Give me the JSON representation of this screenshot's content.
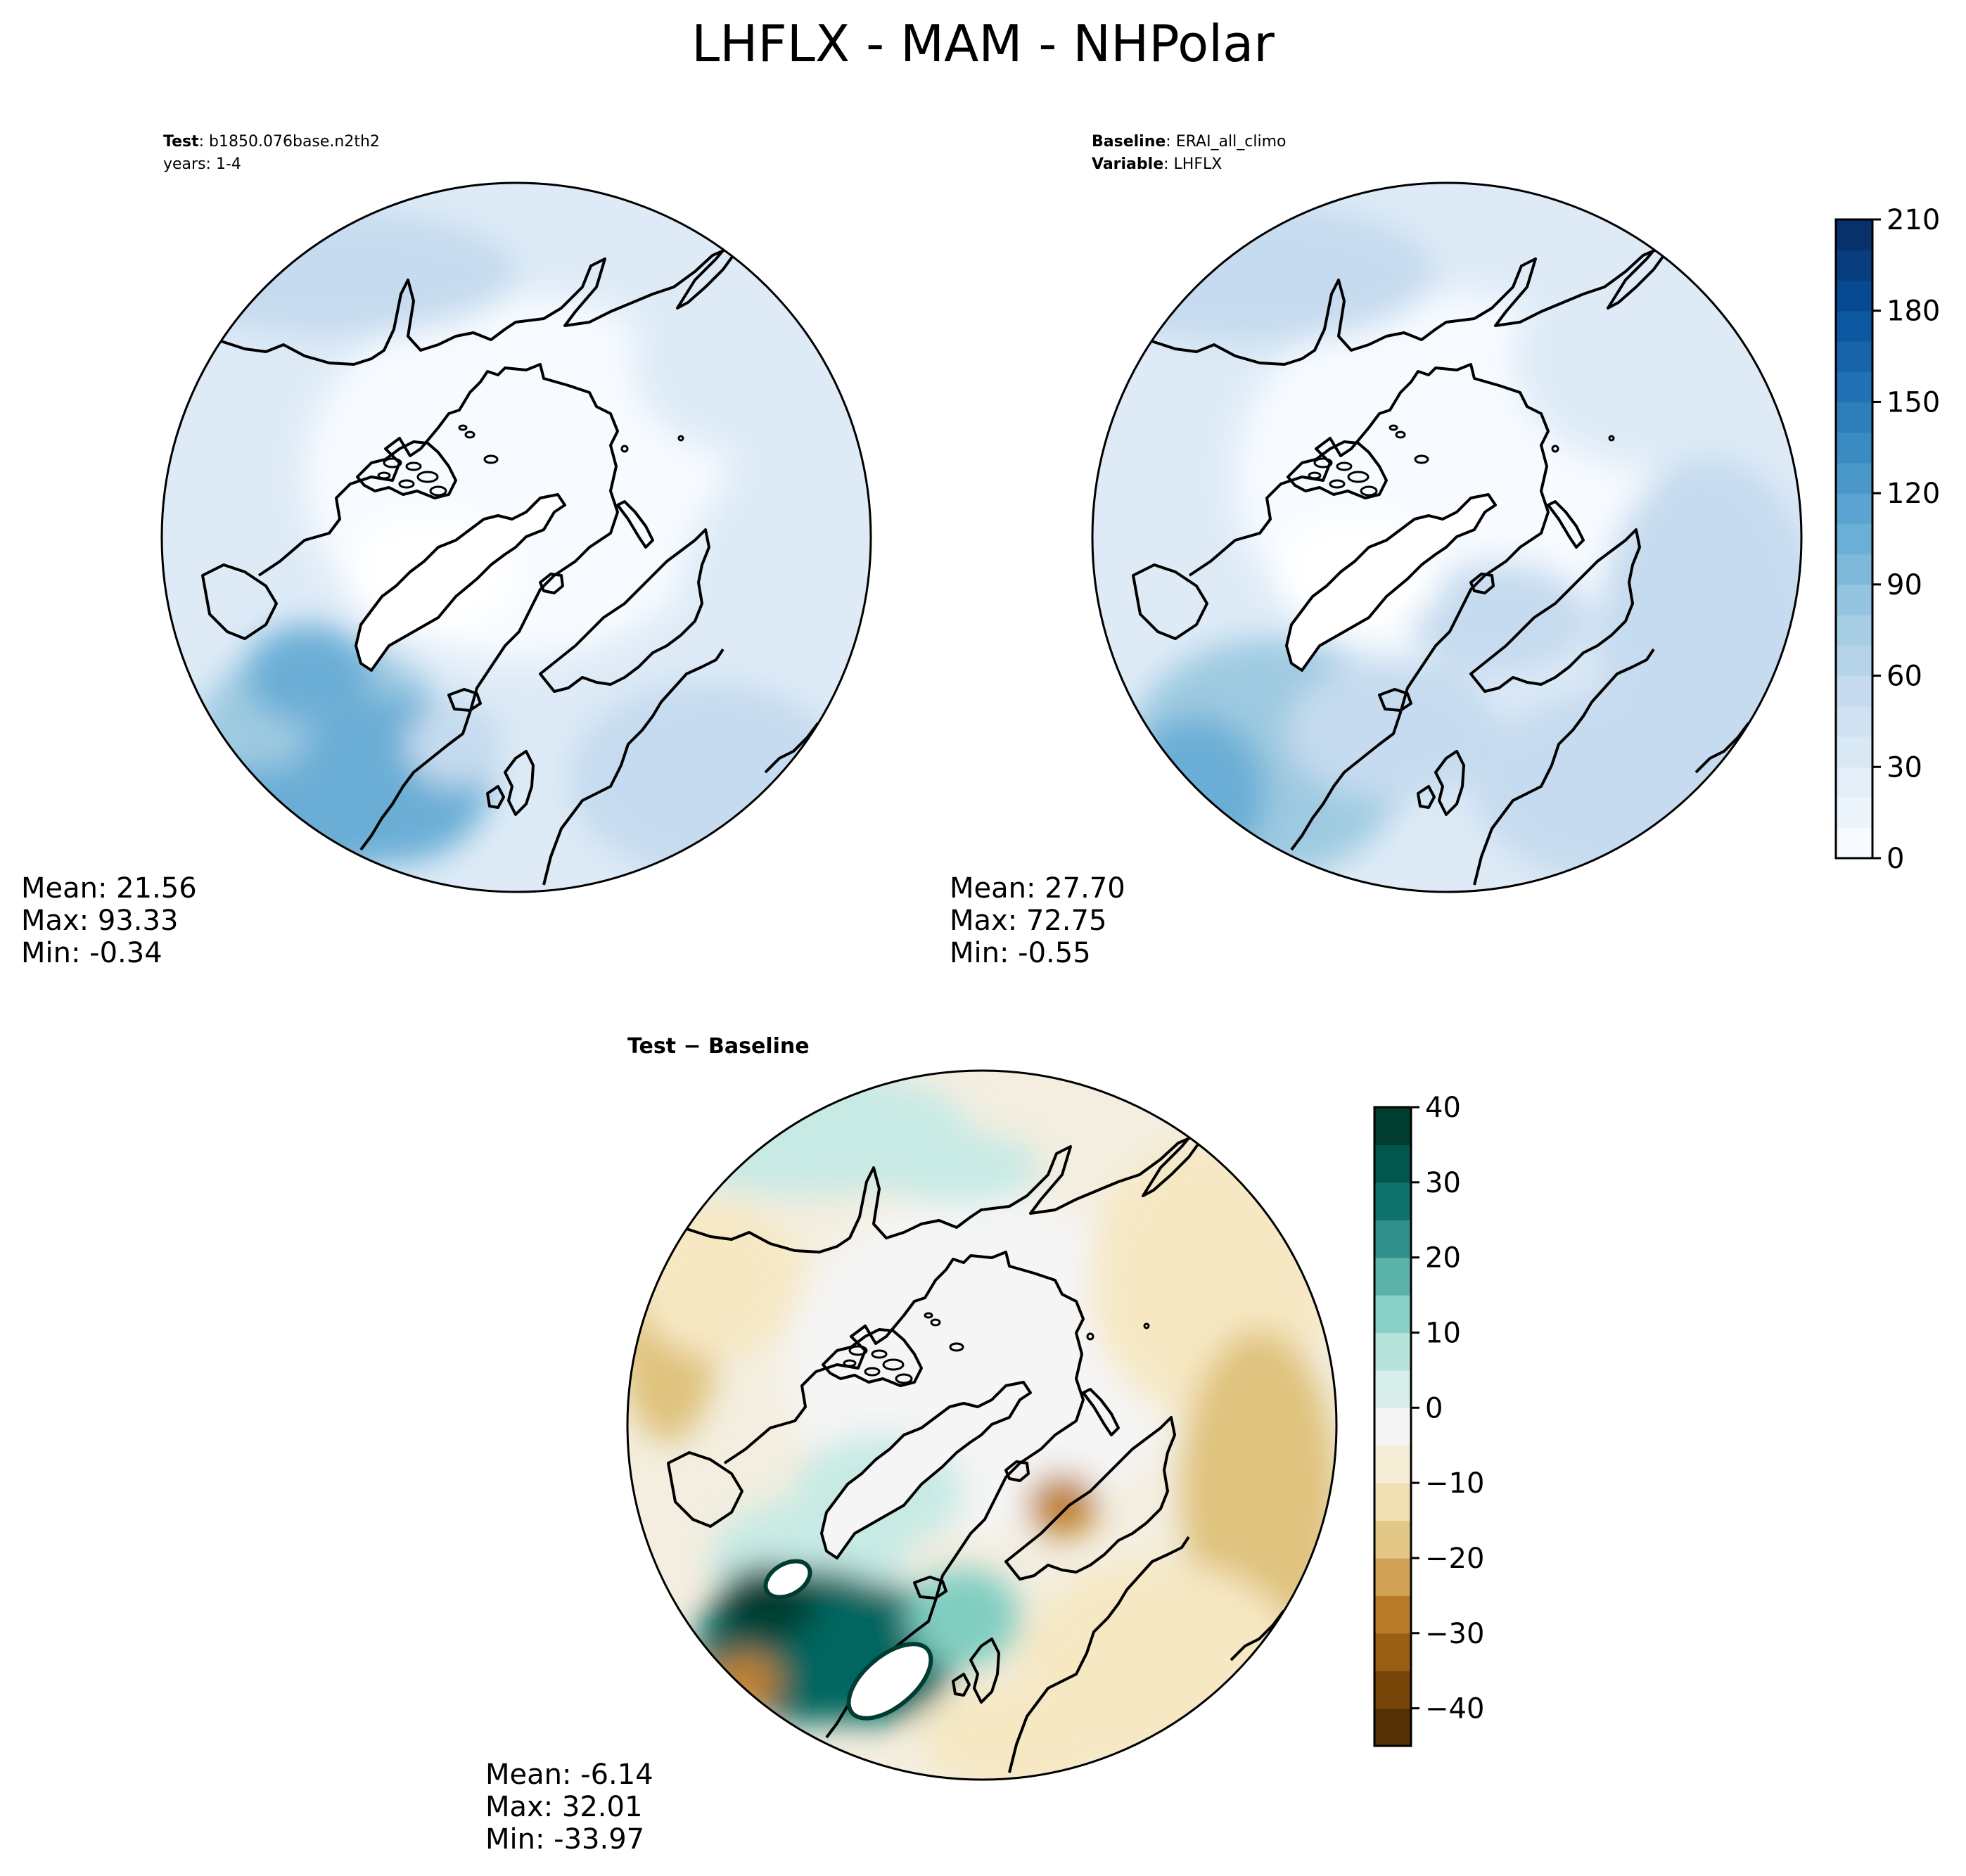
{
  "figure": {
    "title": "LHFLX - MAM - NHPolar"
  },
  "colors": {
    "sequential_ramp": [
      "#f7fbff",
      "#deebf7",
      "#c6dbef",
      "#9ecae1",
      "#6baed6",
      "#4292c6",
      "#2171b5",
      "#08519c",
      "#08306b"
    ],
    "diverging_brown": [
      "#543005",
      "#8c510a",
      "#bf812d",
      "#dfc27d",
      "#f6e8c3"
    ],
    "diverging_mid": "#f5f5f5",
    "diverging_green": [
      "#c7eae5",
      "#80cdc1",
      "#35978f",
      "#01665e",
      "#003c30"
    ],
    "coastline": "#000000"
  },
  "panels": {
    "test": {
      "header_key": "Test",
      "header_sep": ":",
      "header_value": "b1850.076base.n2th2",
      "years": "years: 1-4",
      "mean": "Mean: 21.56",
      "max": "Max: 93.33",
      "min": "Min: -0.34"
    },
    "baseline": {
      "header_key": "Baseline",
      "header_sep": ":",
      "header_value": "ERAI_all_climo",
      "variable_key": "Variable",
      "variable_value": "LHFLX",
      "mean": "Mean: 27.70",
      "max": "Max: 72.75",
      "min": "Min: -0.55"
    },
    "diff": {
      "label": "Test − Baseline",
      "mean": "Mean: -6.14",
      "max": "Max: 32.01",
      "min": "Min: -33.97"
    }
  },
  "chart_data": [
    {
      "type": "heatmap",
      "name": "Test",
      "projection": "north polar stereographic",
      "stats": {
        "mean": 21.56,
        "max": 93.33,
        "min": -0.34
      },
      "colorbar": {
        "ticks": [
          0,
          30,
          60,
          90,
          120,
          150,
          180,
          210
        ],
        "range": [
          0,
          210
        ]
      }
    },
    {
      "type": "heatmap",
      "name": "Baseline",
      "projection": "north polar stereographic",
      "stats": {
        "mean": 27.7,
        "max": 72.75,
        "min": -0.55
      },
      "colorbar": {
        "ticks": [
          0,
          30,
          60,
          90,
          120,
          150,
          180,
          210
        ],
        "range": [
          0,
          210
        ]
      }
    },
    {
      "type": "heatmap",
      "name": "Test − Baseline",
      "projection": "north polar stereographic",
      "stats": {
        "mean": -6.14,
        "max": 32.01,
        "min": -33.97
      },
      "colorbar": {
        "ticks": [
          40,
          30,
          20,
          10,
          0,
          -10,
          -20,
          -30,
          -40
        ],
        "tick_labels": [
          "40",
          "30",
          "20",
          "10",
          "0",
          "−10",
          "−20",
          "−30",
          "−40"
        ],
        "range": [
          -45,
          40
        ]
      }
    }
  ],
  "colorbars": {
    "sequential_ticks": [
      "0",
      "30",
      "60",
      "90",
      "120",
      "150",
      "180",
      "210"
    ],
    "diverging_ticks": [
      "40",
      "30",
      "20",
      "10",
      "0",
      "−10",
      "−20",
      "−30",
      "−40"
    ]
  }
}
